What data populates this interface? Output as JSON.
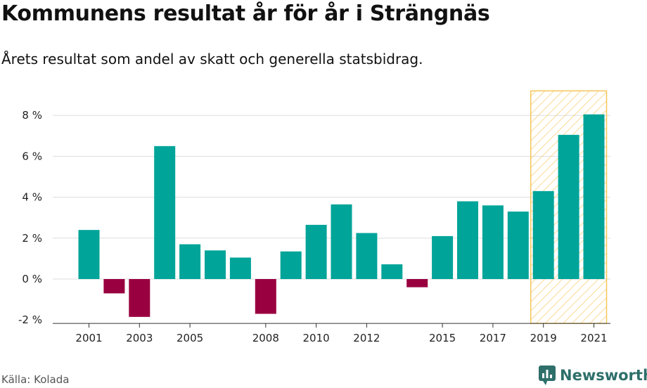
{
  "header": {
    "title": "Kommunens resultat år för år i Strängnäs",
    "subtitle": "Årets resultat som andel av skatt och generella statsbidrag."
  },
  "footer": {
    "source": "Källa: Kolada",
    "brand": "Newsworthy"
  },
  "colors": {
    "positive": "#00a499",
    "negative": "#990040",
    "highlight_stroke": "#f5c65a",
    "grid": "#dddddd",
    "brand": "#2e6f6a"
  },
  "chart_data": {
    "type": "bar",
    "title": "Kommunens resultat år för år i Strängnäs",
    "subtitle": "Årets resultat som andel av skatt och generella statsbidrag.",
    "unit": "%",
    "x": [
      2001,
      2002,
      2003,
      2004,
      2005,
      2006,
      2007,
      2008,
      2009,
      2010,
      2011,
      2012,
      2013,
      2014,
      2015,
      2016,
      2017,
      2018,
      2019,
      2020,
      2021
    ],
    "values": [
      2.4,
      -0.7,
      -1.85,
      6.5,
      1.7,
      1.4,
      1.05,
      -1.7,
      1.35,
      2.65,
      3.65,
      2.25,
      0.72,
      -0.4,
      2.1,
      3.8,
      3.6,
      3.3,
      4.3,
      7.05,
      8.05
    ],
    "xticks": [
      2001,
      2003,
      2005,
      2008,
      2010,
      2012,
      2015,
      2017,
      2019,
      2021
    ],
    "yticks": [
      -2,
      0,
      2,
      4,
      6,
      8
    ],
    "ytick_labels": [
      "-2 %",
      "0 %",
      "2 %",
      "4 %",
      "6 %",
      "8 %"
    ],
    "ylim": [
      -2.1,
      9.2
    ],
    "grid": "horizontal",
    "highlight": {
      "from": 2019,
      "to": 2021,
      "style": "hatched"
    }
  }
}
